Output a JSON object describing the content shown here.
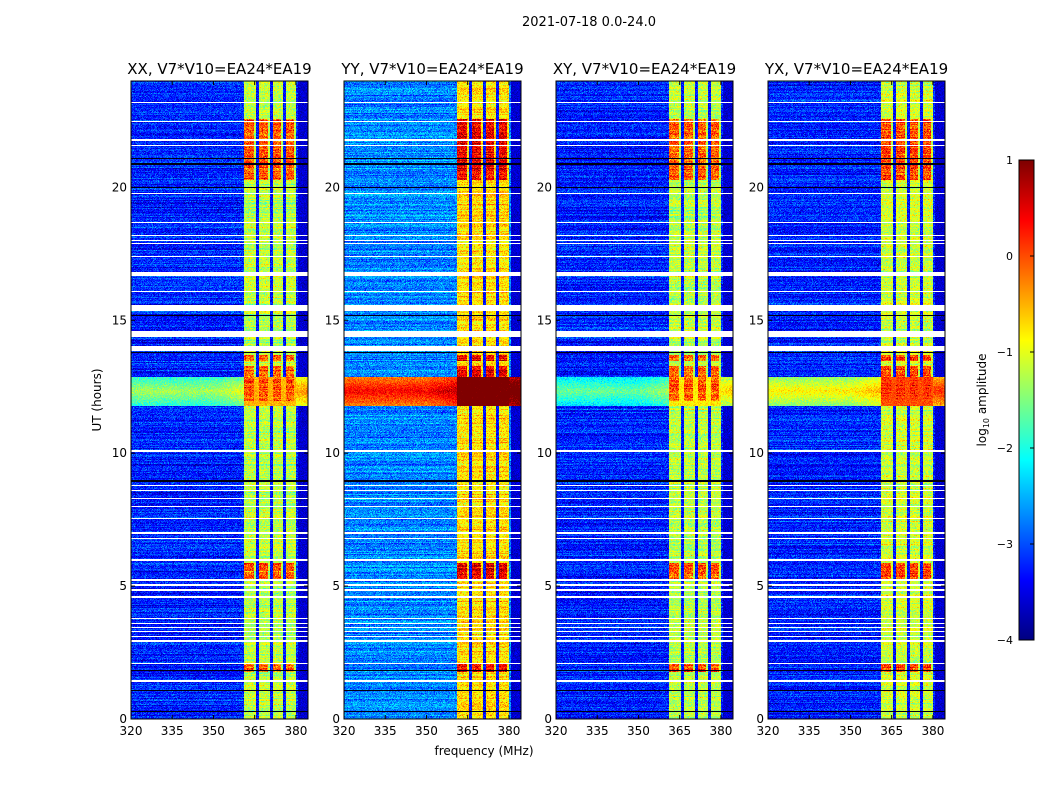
{
  "chart_data": {
    "type": "heatmap",
    "title": "2021-07-18 0.0-24.0",
    "xlabel": "frequency (MHz)",
    "ylabel": "UT (hours)",
    "xlim": [
      320,
      384.4
    ],
    "ylim": [
      0,
      24
    ],
    "xticks": [
      320,
      335,
      350,
      365,
      380
    ],
    "yticks": [
      0,
      5,
      10,
      15,
      20
    ],
    "colormap": "jet",
    "colorbar": {
      "label": "log10 amplitude",
      "label_main": "log",
      "label_sub": "10",
      "label_rest": " amplitude",
      "range": [
        -4,
        1
      ],
      "ticks": [
        1,
        0,
        -1,
        -2,
        -3,
        -4
      ]
    },
    "panels": [
      {
        "title": "XX, V7*V10=EA24*EA19",
        "background": -3.2,
        "band_level": -1.2,
        "rfi_level": -1.3
      },
      {
        "title": "YY, V7*V10=EA24*EA19",
        "background": -2.7,
        "band_level": -0.7,
        "rfi_level": 0.4
      },
      {
        "title": "XY, V7*V10=EA24*EA19",
        "background": -3.2,
        "band_level": -1.2,
        "rfi_level": -1.6
      },
      {
        "title": "YX, V7*V10=EA24*EA19",
        "background": -3.2,
        "band_level": -1.1,
        "rfi_level": -0.8
      }
    ],
    "signal_band_mhz": [
      361,
      380
    ],
    "channel_gaps_mhz": [
      365.8,
      370.9,
      375.6
    ],
    "rfi_hours": [
      11.8,
      12.9
    ],
    "bright_hours": [
      [
        12.0,
        13.3
      ],
      [
        20.3,
        22.6
      ],
      [
        5.3,
        5.9
      ],
      [
        1.8,
        2.1
      ],
      [
        13.5,
        13.7
      ]
    ],
    "flagged_hours": [
      [
        1.42,
        1.5
      ],
      [
        2.08,
        2.14
      ],
      [
        2.93,
        2.98
      ],
      [
        3.1,
        3.14
      ],
      [
        3.28,
        3.32
      ],
      [
        3.44,
        3.48
      ],
      [
        3.58,
        3.62
      ],
      [
        3.78,
        3.82
      ],
      [
        4.58,
        4.64
      ],
      [
        4.84,
        4.9
      ],
      [
        5.03,
        5.08
      ],
      [
        5.22,
        5.28
      ],
      [
        5.98,
        6.03
      ],
      [
        6.78,
        6.84
      ],
      [
        6.98,
        7.06
      ],
      [
        7.53,
        7.58
      ],
      [
        7.98,
        8.03
      ],
      [
        8.28,
        8.33
      ],
      [
        8.58,
        8.64
      ],
      [
        8.78,
        8.84
      ],
      [
        10.08,
        10.13
      ],
      [
        13.85,
        14.05
      ],
      [
        14.4,
        14.6
      ],
      [
        15.35,
        15.6
      ],
      [
        16.08,
        16.13
      ],
      [
        16.68,
        16.85
      ],
      [
        17.38,
        17.42
      ],
      [
        17.88,
        17.92
      ],
      [
        18.0,
        18.04
      ],
      [
        18.18,
        18.22
      ],
      [
        18.68,
        18.72
      ],
      [
        19.78,
        19.82
      ],
      [
        21.58,
        21.62
      ],
      [
        21.78,
        21.82
      ],
      [
        22.48,
        22.52
      ],
      [
        23.18,
        23.22
      ]
    ],
    "dark_rows_hours": [
      0.3,
      1.1,
      1.85,
      8.95,
      9.0,
      13.8,
      15.2,
      20.0,
      20.9,
      21.1
    ]
  }
}
